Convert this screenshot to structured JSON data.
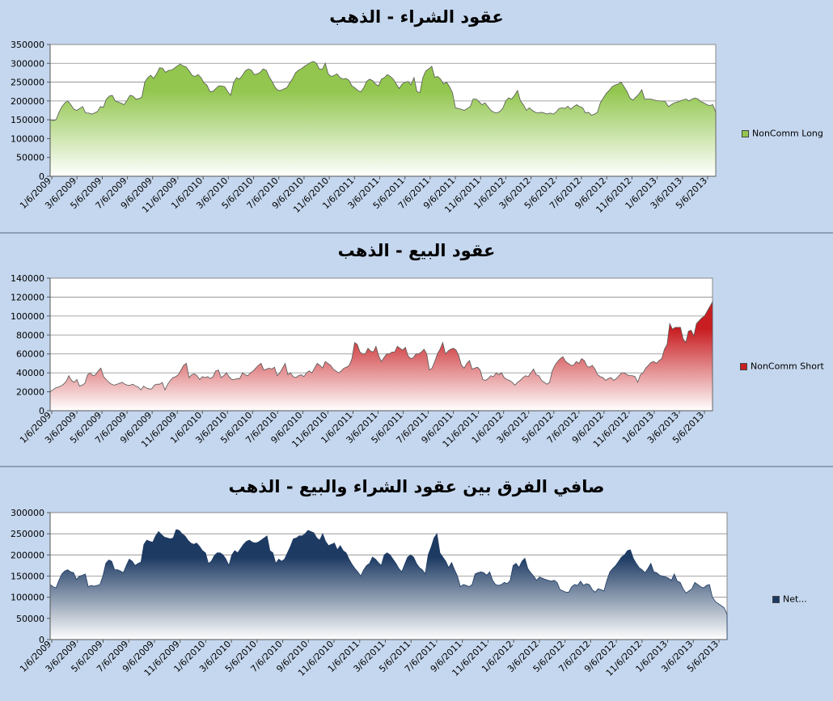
{
  "chart_data": [
    {
      "type": "area",
      "title": "عقود الشراء - الذهب",
      "series": [
        {
          "name": "NonComm Long",
          "color": "#92c64e",
          "values": [
            150000,
            148000,
            150000,
            170000,
            185000,
            195000,
            200000,
            190000,
            178000,
            175000,
            180000,
            185000,
            168000,
            168000,
            165000,
            168000,
            172000,
            185000,
            183000,
            205000,
            213000,
            215000,
            200000,
            197000,
            194000,
            190000,
            202000,
            215000,
            213000,
            205000,
            206000,
            210000,
            250000,
            262000,
            268000,
            260000,
            272000,
            288000,
            287000,
            276000,
            281000,
            282000,
            287000,
            293000,
            298000,
            293000,
            290000,
            280000,
            268000,
            265000,
            270000,
            262000,
            248000,
            242000,
            225000,
            225000,
            233000,
            240000,
            240000,
            238000,
            225000,
            215000,
            248000,
            262000,
            258000,
            268000,
            280000,
            285000,
            282000,
            270000,
            272000,
            276000,
            285000,
            282000,
            265000,
            252000,
            237000,
            228000,
            228000,
            232000,
            235000,
            248000,
            260000,
            275000,
            282000,
            286000,
            292000,
            297000,
            302000,
            305000,
            300000,
            285000,
            284000,
            300000,
            272000,
            265000,
            268000,
            272000,
            262000,
            258000,
            260000,
            255000,
            240000,
            235000,
            228000,
            224000,
            235000,
            252000,
            258000,
            254000,
            245000,
            240000,
            258000,
            262000,
            270000,
            265000,
            258000,
            245000,
            233000,
            245000,
            250000,
            252000,
            243000,
            262000,
            225000,
            222000,
            262000,
            280000,
            285000,
            292000,
            263000,
            265000,
            258000,
            245000,
            250000,
            238000,
            222000,
            182000,
            180000,
            178000,
            175000,
            180000,
            185000,
            205000,
            205000,
            198000,
            190000,
            195000,
            185000,
            175000,
            170000,
            168000,
            172000,
            180000,
            200000,
            208000,
            205000,
            215000,
            228000,
            200000,
            190000,
            175000,
            182000,
            175000,
            170000,
            168000,
            170000,
            168000,
            165000,
            168000,
            165000,
            170000,
            180000,
            182000,
            180000,
            186000,
            178000,
            185000,
            190000,
            185000,
            182000,
            168000,
            170000,
            162000,
            165000,
            170000,
            195000,
            208000,
            220000,
            228000,
            238000,
            242000,
            245000,
            250000,
            238000,
            225000,
            208000,
            202000,
            210000,
            218000,
            230000,
            205000,
            205000,
            205000,
            203000,
            201000,
            200000,
            200000,
            198000,
            185000,
            190000,
            195000,
            197000,
            200000,
            203000,
            205000,
            200000,
            205000,
            208000,
            205000,
            198000,
            195000,
            190000,
            188000,
            190000,
            170000
          ]
        }
      ],
      "ylim": [
        0,
        350000
      ],
      "yticks": [
        0,
        50000,
        100000,
        150000,
        200000,
        250000,
        300000,
        350000
      ],
      "ytick_labels": [
        "0",
        "50000",
        "100000",
        "150000",
        "200000",
        "250000",
        "300000",
        "350000"
      ],
      "xtick_labels": [
        "1/6/2009",
        "3/6/2009",
        "5/6/2009",
        "7/6/2009",
        "9/6/2009",
        "11/6/2009",
        "1/6/2010",
        "3/6/2010",
        "5/6/2010",
        "7/6/2010",
        "9/6/2010",
        "11/6/2010",
        "1/6/2011",
        "3/6/2011",
        "5/6/2011",
        "7/6/2011",
        "9/6/2011",
        "11/6/2011",
        "1/6/2012",
        "3/6/2012",
        "5/6/2012",
        "7/6/2012",
        "9/6/2012",
        "11/6/2012",
        "1/6/2013",
        "3/6/2013",
        "5/6/2013"
      ],
      "grid": true,
      "legend": "right"
    },
    {
      "type": "area",
      "title": "عقود البيع - الذهب",
      "series": [
        {
          "name": "NonComm Short",
          "color": "#c81e22",
          "values": [
            20000,
            22000,
            24000,
            25000,
            26000,
            28000,
            31000,
            37000,
            32000,
            30000,
            33000,
            26000,
            27000,
            29000,
            38000,
            40000,
            37000,
            38000,
            42000,
            45000,
            36000,
            33000,
            30000,
            28000,
            27000,
            28000,
            29000,
            30000,
            28000,
            27000,
            27000,
            28000,
            26000,
            25000,
            22000,
            26000,
            24000,
            23000,
            23000,
            27000,
            28000,
            28000,
            30000,
            22000,
            28000,
            32000,
            35000,
            36000,
            38000,
            43000,
            48000,
            50000,
            35000,
            38000,
            39000,
            37000,
            33000,
            36000,
            35000,
            36000,
            34000,
            36000,
            42000,
            43000,
            35000,
            37000,
            40000,
            36000,
            33000,
            33000,
            34000,
            34000,
            40000,
            38000,
            37000,
            40000,
            42000,
            45000,
            48000,
            50000,
            43000,
            44000,
            45000,
            44000,
            46000,
            37000,
            40000,
            45000,
            50000,
            38000,
            40000,
            36000,
            35000,
            37000,
            38000,
            36000,
            40000,
            42000,
            40000,
            45000,
            50000,
            48000,
            45000,
            52000,
            50000,
            48000,
            44000,
            42000,
            40000,
            42000,
            45000,
            46000,
            48000,
            55000,
            72000,
            70000,
            62000,
            60000,
            60000,
            66000,
            63000,
            62000,
            68000,
            58000,
            52000,
            56000,
            60000,
            60000,
            62000,
            62000,
            68000,
            66000,
            64000,
            67000,
            58000,
            55000,
            56000,
            60000,
            60000,
            62000,
            65000,
            60000,
            43000,
            45000,
            52000,
            60000,
            65000,
            72000,
            60000,
            63000,
            65000,
            66000,
            64000,
            58000,
            48000,
            45000,
            50000,
            53000,
            44000,
            45000,
            46000,
            43000,
            33000,
            32000,
            34000,
            37000,
            36000,
            40000,
            38000,
            40000,
            35000,
            33000,
            32000,
            30000,
            27000,
            30000,
            32000,
            35000,
            37000,
            36000,
            40000,
            44000,
            38000,
            37000,
            32000,
            30000,
            28000,
            30000,
            42000,
            48000,
            52000,
            55000,
            57000,
            52000,
            50000,
            48000,
            48000,
            52000,
            50000,
            55000,
            53000,
            47000,
            46000,
            48000,
            44000,
            38000,
            36000,
            35000,
            32000,
            34000,
            35000,
            32000,
            34000,
            37000,
            40000,
            40000,
            38000,
            37000,
            37000,
            36000,
            30000,
            38000,
            40000,
            45000,
            48000,
            51000,
            52000,
            50000,
            53000,
            55000,
            65000,
            70000,
            92000,
            86000,
            88000,
            88000,
            88000,
            76000,
            72000,
            84000,
            85000,
            79000,
            92000,
            95000,
            98000,
            100000,
            105000,
            110000,
            115000
          ]
        }
      ],
      "ylim": [
        0,
        140000
      ],
      "yticks": [
        0,
        20000,
        40000,
        60000,
        80000,
        100000,
        120000,
        140000
      ],
      "ytick_labels": [
        "0",
        "20000",
        "40000",
        "60000",
        "80000",
        "100000",
        "120000",
        "140000"
      ],
      "xtick_labels": [
        "1/6/2009",
        "3/6/2009",
        "5/6/2009",
        "7/6/2009",
        "9/6/2009",
        "11/6/2009",
        "1/6/2010",
        "3/6/2010",
        "5/6/2010",
        "7/6/2010",
        "9/6/2010",
        "11/6/2010",
        "1/6/2011",
        "3/6/2011",
        "5/6/2011",
        "7/6/2011",
        "9/6/2011",
        "11/6/2011",
        "1/6/2012",
        "3/6/2012",
        "5/6/2012",
        "7/6/2012",
        "9/6/2012",
        "11/6/2012",
        "1/6/2013",
        "3/6/2013",
        "5/6/2013"
      ],
      "grid": true,
      "legend": "right"
    },
    {
      "type": "area",
      "title": "صافي الفرق بين عقود الشراء والبيع - الذهب",
      "series": [
        {
          "name": "Net...",
          "color": "#1d3a63",
          "values": [
            130000,
            125000,
            122000,
            140000,
            155000,
            162000,
            165000,
            160000,
            158000,
            142000,
            150000,
            152000,
            155000,
            125000,
            128000,
            126000,
            128000,
            130000,
            150000,
            180000,
            188000,
            185000,
            165000,
            165000,
            162000,
            158000,
            175000,
            190000,
            185000,
            175000,
            180000,
            183000,
            225000,
            235000,
            232000,
            230000,
            245000,
            255000,
            248000,
            242000,
            240000,
            238000,
            240000,
            260000,
            258000,
            250000,
            245000,
            235000,
            228000,
            225000,
            228000,
            220000,
            210000,
            205000,
            180000,
            185000,
            198000,
            205000,
            205000,
            200000,
            190000,
            175000,
            200000,
            210000,
            205000,
            215000,
            225000,
            232000,
            235000,
            230000,
            228000,
            230000,
            235000,
            240000,
            245000,
            210000,
            205000,
            180000,
            190000,
            185000,
            190000,
            205000,
            220000,
            238000,
            240000,
            245000,
            245000,
            250000,
            258000,
            255000,
            252000,
            240000,
            235000,
            250000,
            232000,
            222000,
            225000,
            228000,
            212000,
            222000,
            210000,
            205000,
            190000,
            178000,
            168000,
            160000,
            150000,
            165000,
            175000,
            180000,
            195000,
            190000,
            182000,
            175000,
            200000,
            205000,
            200000,
            190000,
            180000,
            168000,
            160000,
            178000,
            195000,
            200000,
            195000,
            180000,
            170000,
            165000,
            155000,
            200000,
            218000,
            240000,
            250000,
            205000,
            195000,
            185000,
            170000,
            182000,
            165000,
            150000,
            125000,
            130000,
            128000,
            125000,
            130000,
            155000,
            158000,
            160000,
            158000,
            152000,
            160000,
            140000,
            130000,
            128000,
            130000,
            135000,
            132000,
            140000,
            175000,
            180000,
            170000,
            185000,
            192000,
            168000,
            158000,
            150000,
            140000,
            148000,
            145000,
            142000,
            140000,
            138000,
            140000,
            135000,
            118000,
            115000,
            112000,
            112000,
            125000,
            130000,
            128000,
            138000,
            128000,
            132000,
            130000,
            118000,
            112000,
            120000,
            118000,
            115000,
            140000,
            160000,
            168000,
            175000,
            185000,
            195000,
            200000,
            210000,
            212000,
            192000,
            180000,
            170000,
            165000,
            158000,
            168000,
            180000,
            160000,
            158000,
            152000,
            150000,
            148000,
            145000,
            140000,
            155000,
            138000,
            135000,
            120000,
            110000,
            115000,
            120000,
            135000,
            130000,
            125000,
            122000,
            128000,
            130000,
            100000,
            90000,
            85000,
            80000,
            75000,
            60000
          ]
        }
      ],
      "ylim": [
        0,
        300000
      ],
      "yticks": [
        0,
        50000,
        100000,
        150000,
        200000,
        250000,
        300000
      ],
      "ytick_labels": [
        "0",
        "50000",
        "100000",
        "150000",
        "200000",
        "250000",
        "300000"
      ],
      "xtick_labels": [
        "1/6/2009",
        "3/6/2009",
        "5/6/2009",
        "7/6/2009",
        "9/6/2009",
        "11/6/2009",
        "1/6/2010",
        "3/6/2010",
        "5/6/2010",
        "7/6/2010",
        "9/6/2010",
        "11/6/2010",
        "1/6/2011",
        "3/6/2011",
        "5/6/2011",
        "7/6/2011",
        "9/6/2011",
        "11/6/2011",
        "1/6/2012",
        "3/6/2012",
        "5/6/2012",
        "7/6/2012",
        "9/6/2012",
        "11/6/2012",
        "1/6/2013",
        "3/6/2013",
        "5/6/2013"
      ],
      "grid": true,
      "legend": "right"
    }
  ]
}
